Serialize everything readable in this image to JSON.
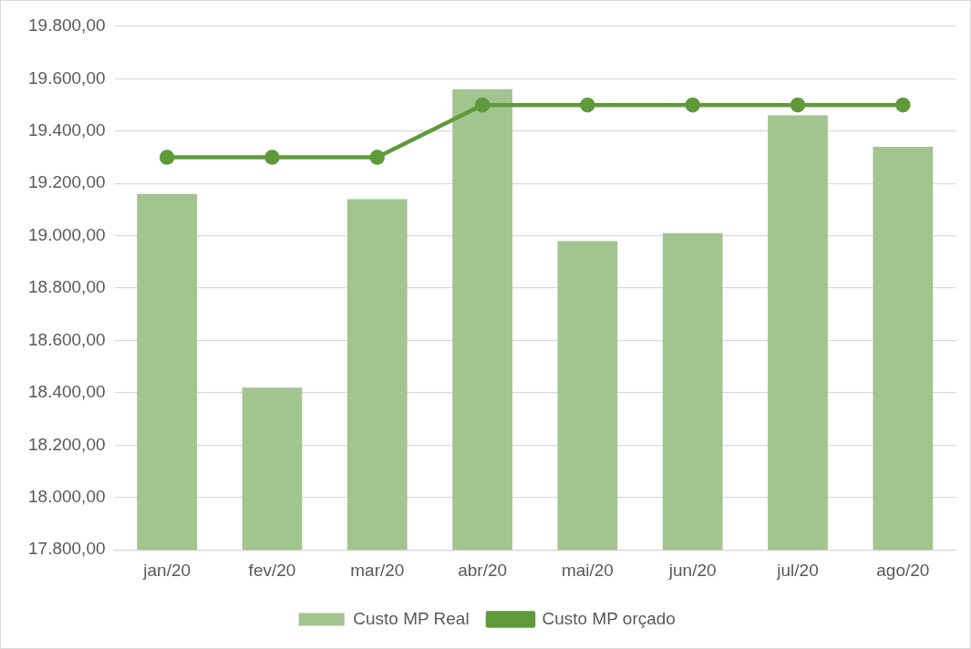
{
  "chart_data": {
    "type": "bar",
    "categories": [
      "jan/20",
      "fev/20",
      "mar/20",
      "abr/20",
      "mai/20",
      "jun/20",
      "jul/20",
      "ago/20"
    ],
    "series": [
      {
        "name": "Custo MP Real",
        "color": "#a2c48f",
        "values": [
          19160,
          18420,
          19140,
          19560,
          18980,
          19010,
          19460,
          19340
        ]
      },
      {
        "name": "Custo MP orçado",
        "type": "line",
        "color": "#5e9a3a",
        "values": [
          19300,
          19300,
          19300,
          19500,
          19500,
          19500,
          19500,
          19500
        ]
      }
    ],
    "ylim": [
      17800,
      19800
    ],
    "yticks": [
      {
        "value": 17800,
        "label": "17.800,00"
      },
      {
        "value": 18000,
        "label": "18.000,00"
      },
      {
        "value": 18200,
        "label": "18.200,00"
      },
      {
        "value": 18400,
        "label": "18.400,00"
      },
      {
        "value": 18600,
        "label": "18.600,00"
      },
      {
        "value": 18800,
        "label": "18.800,00"
      },
      {
        "value": 19000,
        "label": "19.000,00"
      },
      {
        "value": 19200,
        "label": "19.200,00"
      },
      {
        "value": 19400,
        "label": "19.400,00"
      },
      {
        "value": 19600,
        "label": "19.600,00"
      },
      {
        "value": 19800,
        "label": "19.800,00"
      }
    ],
    "grid": "y",
    "legend": "bottom",
    "marker": "circle",
    "line_style": "solid"
  }
}
